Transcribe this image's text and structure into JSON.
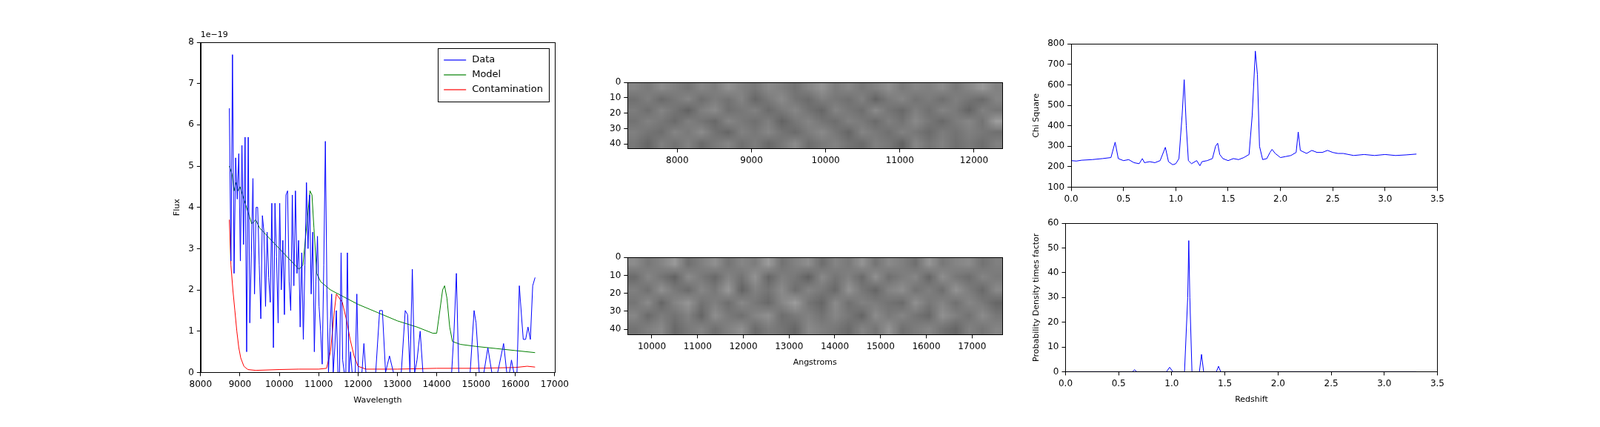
{
  "chart_data": [
    {
      "type": "line",
      "x_label": "Wavelength",
      "y_label": "Flux",
      "y_multiplier": "1e−19",
      "xlim": [
        8000,
        17000
      ],
      "xticks": [
        8000,
        9000,
        10000,
        11000,
        12000,
        13000,
        14000,
        15000,
        16000,
        17000
      ],
      "ylim": [
        0,
        8
      ],
      "yticks": [
        0,
        1,
        2,
        3,
        4,
        5,
        6,
        7,
        8
      ],
      "legend": "upper right",
      "series": [
        {
          "name": "Data",
          "color": "#0000ff",
          "x": [
            8730,
            8770,
            8810,
            8850,
            8890,
            8930,
            8970,
            9010,
            9050,
            9090,
            9130,
            9170,
            9210,
            9250,
            9290,
            9330,
            9370,
            9410,
            9450,
            9490,
            9530,
            9570,
            9610,
            9650,
            9690,
            9730,
            9770,
            9810,
            9850,
            9890,
            9930,
            9970,
            10010,
            10050,
            10090,
            10130,
            10170,
            10210,
            10250,
            10290,
            10330,
            10370,
            10410,
            10450,
            10490,
            10530,
            10570,
            10610,
            10650,
            10690,
            10730,
            10770,
            10810,
            10850,
            10890,
            10930,
            10970,
            11010,
            11050,
            11090,
            11130,
            11170,
            11210,
            11250,
            11290,
            11330,
            11370,
            11410,
            11450,
            11490,
            11530,
            11570,
            11610,
            11650,
            11690,
            11730,
            11770,
            11810,
            11850,
            11890,
            11930,
            11970,
            12010,
            12050,
            12100,
            12150,
            12200,
            12300,
            12400,
            12450,
            12550,
            12620,
            12700,
            12800,
            12900,
            13000,
            13100,
            13200,
            13260,
            13320,
            13380,
            13440,
            13500,
            13580,
            13650,
            13800,
            14000,
            14200,
            14380,
            14440,
            14500,
            14560,
            14700,
            14850,
            14950,
            15000,
            15080,
            15200,
            15300,
            15400,
            15550,
            15700,
            15780,
            15850,
            15900,
            15960,
            16040,
            16100,
            16160,
            16200,
            16260,
            16320,
            16380,
            16440,
            16500
          ],
          "values": [
            6.4,
            2.7,
            7.7,
            2.4,
            5.2,
            4.2,
            5.3,
            2.7,
            5.5,
            3.1,
            5.7,
            0.5,
            5.7,
            1.2,
            2.9,
            4.7,
            1.9,
            4.0,
            4.0,
            2.6,
            1.3,
            3.8,
            3.4,
            1.6,
            3.4,
            2.3,
            1.7,
            4.1,
            0.6,
            4.1,
            2.8,
            1.2,
            4.1,
            2.0,
            3.2,
            1.4,
            4.3,
            4.4,
            2.2,
            1.5,
            4.3,
            2.1,
            4.4,
            2.4,
            3.2,
            1.1,
            2.9,
            0.8,
            2.6,
            4.6,
            3.0,
            4.3,
            1.9,
            3.4,
            0.5,
            2.2,
            3.3,
            1.6,
            1.0,
            0.2,
            2.6,
            5.6,
            2.0,
            0.0,
            1.1,
            1.9,
            0.0,
            0.6,
            1.5,
            0.0,
            0.0,
            2.9,
            0.3,
            0.0,
            0.0,
            2.9,
            0.0,
            0.5,
            0.0,
            0.0,
            0.0,
            1.9,
            0.0,
            0.0,
            0.0,
            0.7,
            0.0,
            0.0,
            0.0,
            0.0,
            1.5,
            1.5,
            0.0,
            0.4,
            0.0,
            0.0,
            0.0,
            1.5,
            1.4,
            0.0,
            2.5,
            0.0,
            0.3,
            1.0,
            0.0,
            0.0,
            0.0,
            0.0,
            0.0,
            1.0,
            2.4,
            0.0,
            0.0,
            0.0,
            1.5,
            1.2,
            0.0,
            0.0,
            0.6,
            0.0,
            0.0,
            0.7,
            0.0,
            0.0,
            0.3,
            0.0,
            0.0,
            2.1,
            1.3,
            0.8,
            0.8,
            1.1,
            0.8,
            2.1,
            2.3
          ]
        },
        {
          "name": "Model",
          "color": "#008000",
          "x": [
            8730,
            8800,
            8850,
            8900,
            8950,
            9000,
            9100,
            9200,
            9300,
            9400,
            9500,
            9700,
            9900,
            10100,
            10300,
            10500,
            10600,
            10700,
            10780,
            10830,
            10880,
            10950,
            11050,
            11300,
            11600,
            12000,
            12500,
            13000,
            13500,
            13900,
            14000,
            14080,
            14150,
            14200,
            14260,
            14330,
            14400,
            14600,
            15000,
            15500,
            16000,
            16500
          ],
          "values": [
            5.0,
            4.8,
            4.4,
            4.6,
            4.4,
            4.5,
            4.2,
            3.9,
            3.6,
            3.7,
            3.5,
            3.3,
            3.1,
            2.9,
            2.7,
            2.5,
            2.6,
            3.6,
            4.4,
            4.3,
            3.5,
            2.4,
            2.2,
            2.0,
            1.85,
            1.65,
            1.45,
            1.25,
            1.1,
            0.95,
            0.95,
            1.5,
            2.0,
            2.1,
            1.8,
            1.1,
            0.75,
            0.68,
            0.63,
            0.58,
            0.53,
            0.48
          ]
        },
        {
          "name": "Contamination",
          "color": "#ff0000",
          "x": [
            8730,
            8770,
            8820,
            8870,
            8920,
            8970,
            9020,
            9100,
            9200,
            9400,
            10000,
            10500,
            11000,
            11200,
            11300,
            11400,
            11450,
            11600,
            11700,
            11800,
            11900,
            12000,
            12200,
            13000,
            14000,
            15000,
            16000,
            16300,
            16500
          ],
          "values": [
            3.7,
            2.6,
            2.0,
            1.5,
            1.0,
            0.6,
            0.35,
            0.15,
            0.07,
            0.05,
            0.07,
            0.08,
            0.08,
            0.1,
            0.5,
            1.5,
            1.9,
            1.7,
            1.3,
            0.8,
            0.4,
            0.15,
            0.08,
            0.08,
            0.1,
            0.1,
            0.12,
            0.15,
            0.13
          ]
        }
      ]
    },
    {
      "type": "heatmap",
      "color": "gray",
      "xlim": [
        7330,
        12380
      ],
      "xticks": [
        8000,
        9000,
        10000,
        11000,
        12000
      ],
      "ylim": [
        43,
        0
      ],
      "yticks": [
        0,
        10,
        20,
        30,
        40
      ],
      "zlim": [
        0,
        1
      ],
      "cells": [
        [
          0.52,
          0.48,
          0.55,
          0.5,
          0.46,
          0.53,
          0.49,
          0.57,
          0.51,
          0.47,
          0.54,
          0.5,
          0.45,
          0.52,
          0.58,
          0.49,
          0.53,
          0.47,
          0.51,
          0.56,
          0.48,
          0.52,
          0.5,
          0.55,
          0.47,
          0.53,
          0.6,
          0.51
        ],
        [
          0.44,
          0.5,
          0.41,
          0.47,
          0.53,
          0.43,
          0.49,
          0.45,
          0.52,
          0.4,
          0.48,
          0.55,
          0.46,
          0.42,
          0.5,
          0.47,
          0.44,
          0.51,
          0.39,
          0.48,
          0.53,
          0.45,
          0.49,
          0.43,
          0.5,
          0.46,
          0.41,
          0.52
        ],
        [
          0.49,
          0.43,
          0.52,
          0.46,
          0.38,
          0.5,
          0.55,
          0.44,
          0.47,
          0.51,
          0.42,
          0.48,
          0.53,
          0.45,
          0.4,
          0.52,
          0.47,
          0.43,
          0.55,
          0.46,
          0.41,
          0.5,
          0.44,
          0.52,
          0.48,
          0.39,
          0.51,
          0.46
        ],
        [
          0.45,
          0.51,
          0.47,
          0.42,
          0.5,
          0.46,
          0.41,
          0.53,
          0.48,
          0.44,
          0.5,
          0.39,
          0.47,
          0.52,
          0.46,
          0.43,
          0.51,
          0.48,
          0.42,
          0.5,
          0.45,
          0.54,
          0.47,
          0.41,
          0.49,
          0.53,
          0.45,
          0.62
        ],
        [
          0.5,
          0.46,
          0.43,
          0.52,
          0.48,
          0.55,
          0.45,
          0.4,
          0.51,
          0.47,
          0.53,
          0.46,
          0.42,
          0.49,
          0.54,
          0.47,
          0.4,
          0.52,
          0.48,
          0.44,
          0.51,
          0.47,
          0.42,
          0.49,
          0.45,
          0.5,
          0.47,
          0.44
        ],
        [
          0.47,
          0.4,
          0.5,
          0.45,
          0.51,
          0.42,
          0.48,
          0.52,
          0.44,
          0.49,
          0.41,
          0.47,
          0.55,
          0.43,
          0.48,
          0.51,
          0.45,
          0.42,
          0.5,
          0.47,
          0.39,
          0.53,
          0.46,
          0.51,
          0.44,
          0.48,
          0.43,
          0.5
        ]
      ]
    },
    {
      "type": "heatmap",
      "color": "gray",
      "x_label": "Angstroms",
      "xlim": [
        9470,
        17660
      ],
      "xticks": [
        10000,
        11000,
        12000,
        13000,
        14000,
        15000,
        16000,
        17000
      ],
      "ylim": [
        43,
        0
      ],
      "yticks": [
        0,
        10,
        20,
        30,
        40
      ],
      "zlim": [
        0,
        1
      ],
      "cells": [
        [
          0.55,
          0.47,
          0.52,
          0.6,
          0.44,
          0.5,
          0.57,
          0.46,
          0.53,
          0.49,
          0.61,
          0.45,
          0.51,
          0.56,
          0.43,
          0.52,
          0.48,
          0.58,
          0.46,
          0.54,
          0.5,
          0.44,
          0.59,
          0.47,
          0.52,
          0.55,
          0.45,
          0.5
        ],
        [
          0.42,
          0.53,
          0.46,
          0.39,
          0.55,
          0.48,
          0.41,
          0.52,
          0.45,
          0.58,
          0.4,
          0.5,
          0.47,
          0.38,
          0.54,
          0.46,
          0.51,
          0.42,
          0.57,
          0.44,
          0.49,
          0.53,
          0.4,
          0.56,
          0.47,
          0.43,
          0.52,
          0.48
        ],
        [
          0.5,
          0.44,
          0.57,
          0.48,
          0.42,
          0.53,
          0.47,
          0.6,
          0.39,
          0.51,
          0.46,
          0.55,
          0.43,
          0.52,
          0.48,
          0.41,
          0.58,
          0.47,
          0.4,
          0.52,
          0.56,
          0.45,
          0.5,
          0.43,
          0.58,
          0.49,
          0.41,
          0.54
        ],
        [
          0.46,
          0.55,
          0.4,
          0.52,
          0.59,
          0.45,
          0.5,
          0.43,
          0.54,
          0.47,
          0.41,
          0.53,
          0.62,
          0.46,
          0.4,
          0.55,
          0.44,
          0.51,
          0.49,
          0.45,
          0.42,
          0.57,
          0.47,
          0.52,
          0.44,
          0.53,
          0.48,
          0.4
        ],
        [
          0.53,
          0.42,
          0.49,
          0.45,
          0.51,
          0.4,
          0.56,
          0.48,
          0.44,
          0.52,
          0.57,
          0.43,
          0.48,
          0.51,
          0.45,
          0.53,
          0.47,
          0.4,
          0.55,
          0.48,
          0.52,
          0.46,
          0.41,
          0.57,
          0.5,
          0.45,
          0.55,
          0.47
        ],
        [
          0.45,
          0.5,
          0.54,
          0.41,
          0.48,
          0.52,
          0.44,
          0.51,
          0.57,
          0.42,
          0.49,
          0.46,
          0.4,
          0.54,
          0.5,
          0.47,
          0.42,
          0.52,
          0.46,
          0.58,
          0.44,
          0.49,
          0.53,
          0.45,
          0.4,
          0.51,
          0.46,
          0.52
        ]
      ]
    },
    {
      "type": "line",
      "y_label": "Chi Square",
      "xlim": [
        0,
        3.5
      ],
      "xticks": [
        {
          "value": 0,
          "label": "0.0"
        },
        0.5,
        {
          "value": 1,
          "label": "1.0"
        },
        1.5,
        {
          "value": 2,
          "label": "2.0"
        },
        2.5,
        {
          "value": 3,
          "label": "3.0"
        },
        3.5
      ],
      "ylim": [
        100,
        800
      ],
      "yticks": [
        100,
        200,
        300,
        400,
        500,
        600,
        700,
        800
      ],
      "series": [
        {
          "color": "#0000ff",
          "x": [
            0,
            0.05,
            0.1,
            0.2,
            0.3,
            0.38,
            0.42,
            0.45,
            0.5,
            0.55,
            0.6,
            0.65,
            0.68,
            0.7,
            0.75,
            0.8,
            0.85,
            0.9,
            0.93,
            0.97,
            1.0,
            1.03,
            1.06,
            1.08,
            1.1,
            1.12,
            1.15,
            1.2,
            1.23,
            1.25,
            1.3,
            1.35,
            1.38,
            1.4,
            1.42,
            1.45,
            1.5,
            1.55,
            1.6,
            1.65,
            1.7,
            1.73,
            1.76,
            1.78,
            1.8,
            1.83,
            1.87,
            1.9,
            1.92,
            1.95,
            2.0,
            2.05,
            2.1,
            2.15,
            2.17,
            2.19,
            2.25,
            2.3,
            2.35,
            2.4,
            2.45,
            2.5,
            2.55,
            2.6,
            2.7,
            2.8,
            2.9,
            3.0,
            3.1,
            3.2,
            3.3
          ],
          "values": [
            230,
            228,
            232,
            235,
            240,
            245,
            320,
            240,
            230,
            235,
            220,
            215,
            240,
            220,
            225,
            220,
            230,
            295,
            225,
            210,
            215,
            240,
            450,
            625,
            400,
            230,
            215,
            230,
            205,
            225,
            230,
            240,
            300,
            315,
            260,
            240,
            230,
            240,
            235,
            245,
            260,
            450,
            765,
            650,
            300,
            235,
            240,
            270,
            285,
            265,
            245,
            250,
            255,
            270,
            370,
            280,
            265,
            280,
            270,
            270,
            280,
            270,
            265,
            265,
            255,
            260,
            255,
            260,
            255,
            258,
            262
          ]
        }
      ]
    },
    {
      "type": "line",
      "x_label": "Redshift",
      "y_label": "Probability Density times factor",
      "xlim": [
        0,
        3.5
      ],
      "xticks": [
        {
          "value": 0,
          "label": "0.0"
        },
        0.5,
        {
          "value": 1,
          "label": "1.0"
        },
        1.5,
        {
          "value": 2,
          "label": "2.0"
        },
        2.5,
        {
          "value": 3,
          "label": "3.0"
        },
        3.5
      ],
      "ylim": [
        0,
        60
      ],
      "yticks": [
        0,
        10,
        20,
        30,
        40,
        50,
        60
      ],
      "series": [
        {
          "color": "#0000ff",
          "x": [
            0,
            0.5,
            0.63,
            0.65,
            0.67,
            0.95,
            0.98,
            1.01,
            1.12,
            1.15,
            1.16,
            1.17,
            1.19,
            1.26,
            1.28,
            1.3,
            1.42,
            1.44,
            1.46,
            2.0,
            2.5,
            3.0,
            3.3
          ],
          "values": [
            0,
            0,
            0,
            0.8,
            0,
            0,
            1.8,
            0,
            0,
            30,
            53,
            30,
            0,
            0,
            7,
            0,
            0,
            2.2,
            0,
            0,
            0,
            0,
            0
          ]
        }
      ]
    }
  ]
}
